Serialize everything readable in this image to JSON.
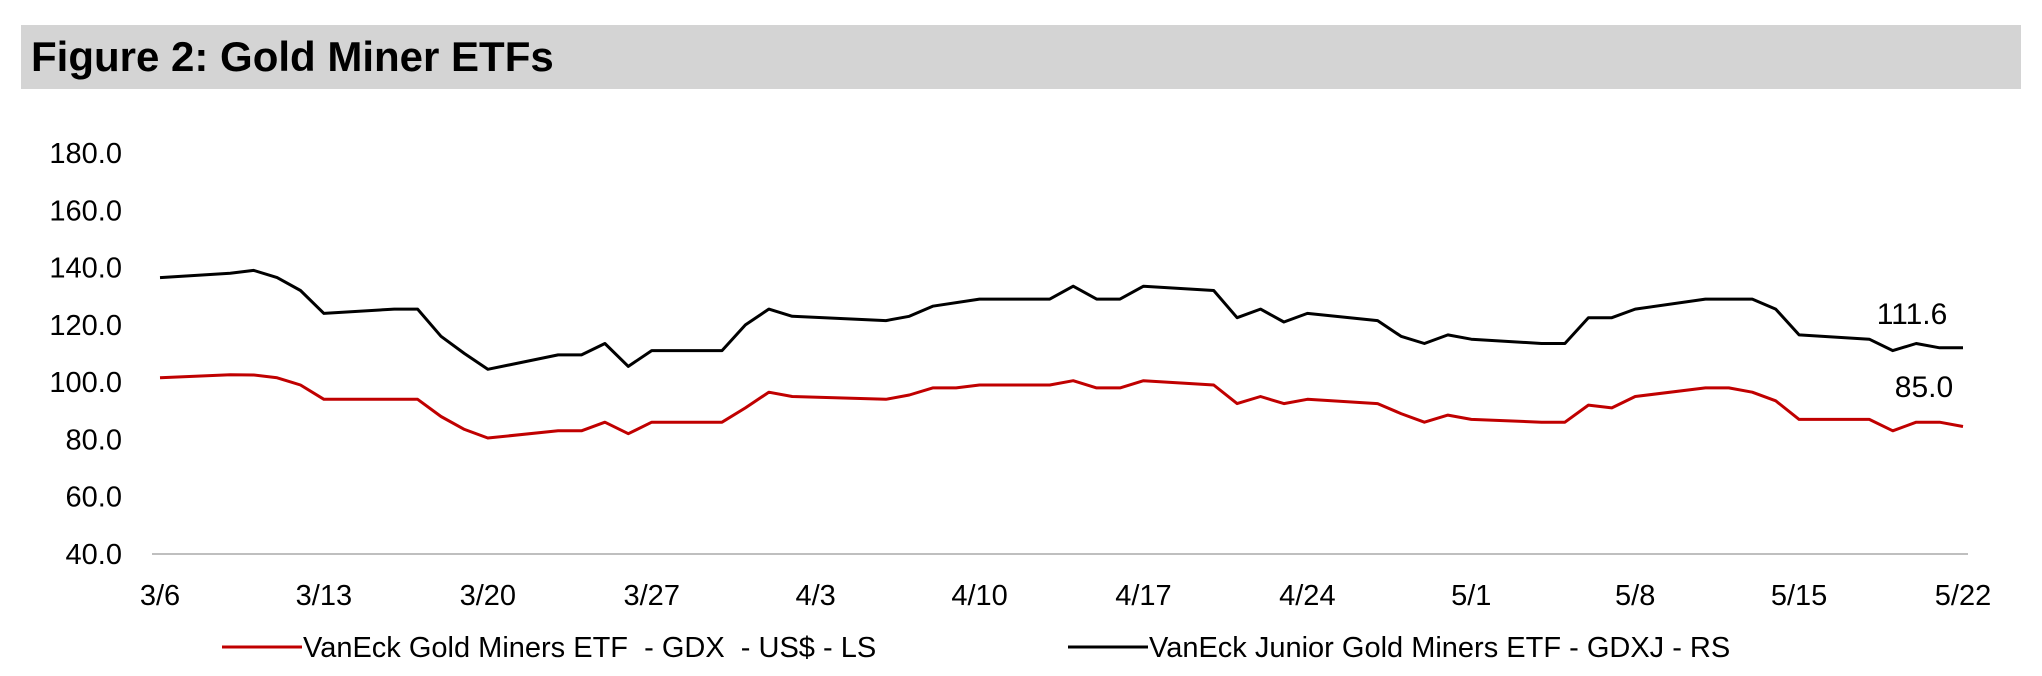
{
  "title": "Figure 2: Gold Miner ETFs",
  "colors": {
    "gdx": "#c00000",
    "gdxj": "#000000",
    "title_bg": "#d4d4d4"
  },
  "chart_data": {
    "type": "line",
    "y_ticks": [
      "180.0",
      "160.0",
      "140.0",
      "120.0",
      "100.0",
      "80.0",
      "60.0",
      "40.0"
    ],
    "ylim": [
      40,
      180
    ],
    "x_tick_labels": [
      "3/6",
      "3/13",
      "3/20",
      "3/27",
      "4/3",
      "4/10",
      "4/17",
      "4/24",
      "5/1",
      "5/8",
      "5/15",
      "5/22"
    ],
    "x_tick_days": [
      0,
      7,
      14,
      21,
      28,
      35,
      42,
      49,
      56,
      63,
      70,
      77
    ],
    "grid": false,
    "legend_position": "bottom",
    "series": [
      {
        "name": "VanEck Gold Miners ETF  - GDX  - US$ - LS",
        "color": "#c00000",
        "end_label": "85.0",
        "points": [
          [
            0,
            101.5
          ],
          [
            3,
            102.6
          ],
          [
            4,
            102.5
          ],
          [
            5,
            101.5
          ],
          [
            6,
            99.0
          ],
          [
            7,
            94.0
          ],
          [
            10,
            94.0
          ],
          [
            11,
            94.0
          ],
          [
            12,
            88.0
          ],
          [
            13,
            83.5
          ],
          [
            14,
            80.5
          ],
          [
            17,
            83.0
          ],
          [
            18,
            83.0
          ],
          [
            19,
            86.0
          ],
          [
            20,
            82.0
          ],
          [
            21,
            86.0
          ],
          [
            24,
            86.0
          ],
          [
            25,
            91.0
          ],
          [
            26,
            96.5
          ],
          [
            27,
            95.0
          ],
          [
            31,
            94.0
          ],
          [
            32,
            95.5
          ],
          [
            33,
            98.0
          ],
          [
            34,
            98.0
          ],
          [
            35,
            99.0
          ],
          [
            38,
            99.0
          ],
          [
            39,
            100.5
          ],
          [
            40,
            98.0
          ],
          [
            41,
            98.0
          ],
          [
            42,
            100.5
          ],
          [
            45,
            99.0
          ],
          [
            46,
            92.5
          ],
          [
            47,
            95.0
          ],
          [
            48,
            92.5
          ],
          [
            49,
            94.0
          ],
          [
            52,
            92.5
          ],
          [
            53,
            89.0
          ],
          [
            54,
            86.0
          ],
          [
            55,
            88.5
          ],
          [
            56,
            87.0
          ],
          [
            59,
            86.0
          ],
          [
            60,
            86.0
          ],
          [
            61,
            92.0
          ],
          [
            62,
            91.0
          ],
          [
            63,
            95.0
          ],
          [
            66,
            98.0
          ],
          [
            67,
            98.0
          ],
          [
            68,
            96.5
          ],
          [
            69,
            93.5
          ],
          [
            70,
            87.0
          ],
          [
            73,
            87.0
          ],
          [
            74,
            83.0
          ],
          [
            75,
            86.0
          ],
          [
            76,
            86.0
          ],
          [
            77,
            84.5
          ]
        ]
      },
      {
        "name": "VanEck Junior Gold Miners ETF - GDXJ - RS",
        "color": "#000000",
        "end_label": "111.6",
        "points": [
          [
            0,
            136.5
          ],
          [
            3,
            138.0
          ],
          [
            4,
            139.0
          ],
          [
            5,
            136.5
          ],
          [
            6,
            132.0
          ],
          [
            7,
            124.0
          ],
          [
            10,
            125.5
          ],
          [
            11,
            125.5
          ],
          [
            12,
            116.0
          ],
          [
            13,
            110.0
          ],
          [
            14,
            104.5
          ],
          [
            17,
            109.5
          ],
          [
            18,
            109.5
          ],
          [
            19,
            113.5
          ],
          [
            20,
            105.5
          ],
          [
            21,
            111.0
          ],
          [
            24,
            111.0
          ],
          [
            25,
            120.0
          ],
          [
            26,
            125.5
          ],
          [
            27,
            123.0
          ],
          [
            31,
            121.5
          ],
          [
            32,
            123.0
          ],
          [
            33,
            126.5
          ],
          [
            35,
            129.0
          ],
          [
            38,
            129.0
          ],
          [
            39,
            133.5
          ],
          [
            40,
            129.0
          ],
          [
            41,
            129.0
          ],
          [
            42,
            133.5
          ],
          [
            45,
            132.0
          ],
          [
            46,
            122.5
          ],
          [
            47,
            125.5
          ],
          [
            48,
            121.0
          ],
          [
            49,
            124.0
          ],
          [
            52,
            121.5
          ],
          [
            53,
            116.0
          ],
          [
            54,
            113.5
          ],
          [
            55,
            116.5
          ],
          [
            56,
            115.0
          ],
          [
            59,
            113.5
          ],
          [
            60,
            113.5
          ],
          [
            61,
            122.5
          ],
          [
            62,
            122.5
          ],
          [
            63,
            125.5
          ],
          [
            66,
            129.0
          ],
          [
            67,
            129.0
          ],
          [
            68,
            129.0
          ],
          [
            69,
            125.5
          ],
          [
            70,
            116.5
          ],
          [
            73,
            115.0
          ],
          [
            74,
            111.0
          ],
          [
            75,
            113.5
          ],
          [
            76,
            112.0
          ],
          [
            77,
            112.0
          ]
        ]
      }
    ]
  }
}
